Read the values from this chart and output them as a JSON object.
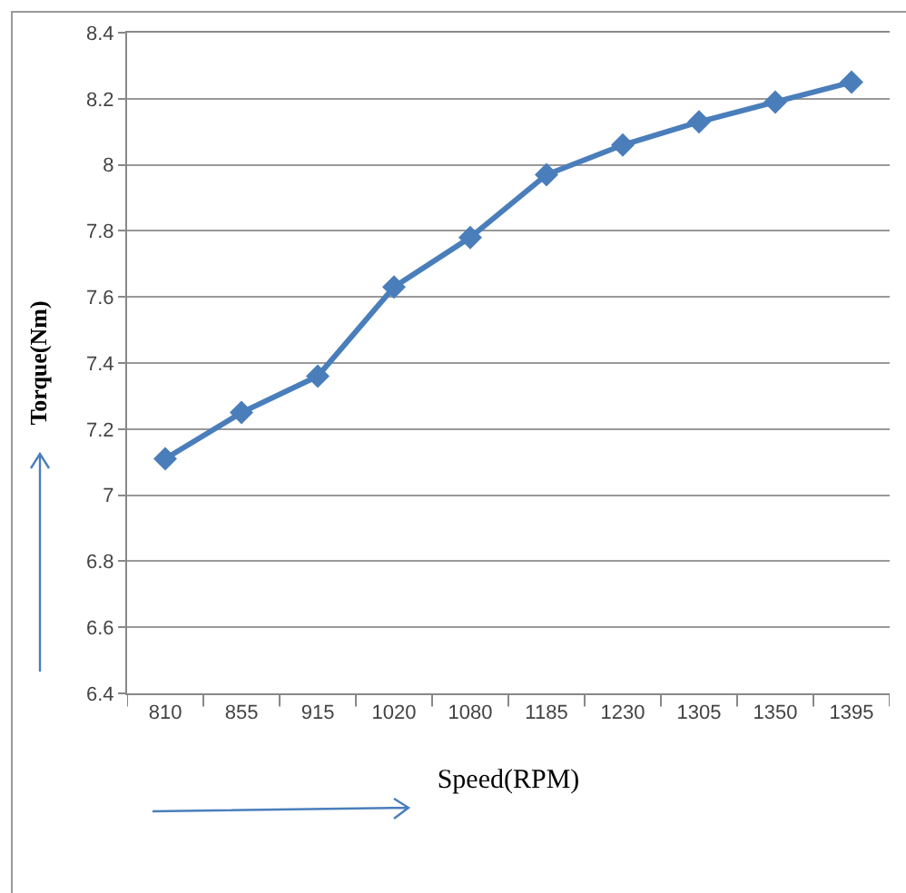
{
  "chart_data": {
    "type": "line",
    "xlabel": "Speed(RPM)",
    "ylabel": "Torque(Nm)",
    "categories": [
      "810",
      "855",
      "915",
      "1020",
      "1080",
      "1185",
      "1230",
      "1305",
      "1350",
      "1395"
    ],
    "series": [
      {
        "color": "#4a7ebb",
        "values": [
          7.11,
          7.25,
          7.36,
          7.63,
          7.78,
          7.97,
          8.06,
          8.13,
          8.19,
          8.25
        ]
      }
    ],
    "ylim": [
      6.4,
      8.4
    ],
    "yticks": [
      6.4,
      6.6,
      6.8,
      7,
      7.2,
      7.4,
      7.6,
      7.8,
      8,
      8.2,
      8.4
    ],
    "grid": "y",
    "marker": "diamond",
    "line_style": "solid"
  }
}
